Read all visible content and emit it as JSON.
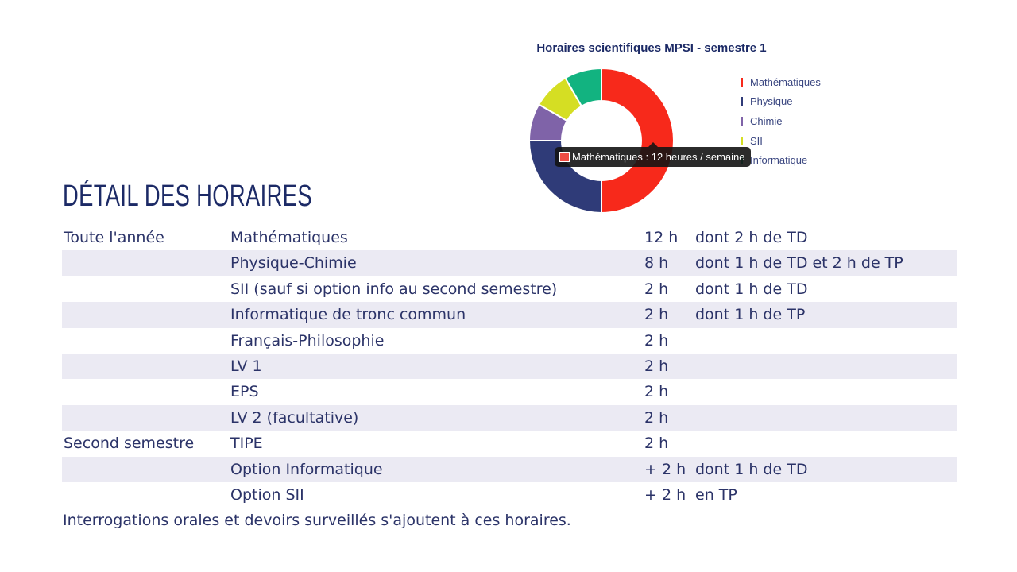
{
  "chart_data": {
    "type": "pie",
    "variant": "donut",
    "title": "Horaires scientifiques MPSI - semestre 1",
    "categories": [
      "Mathématiques",
      "Physique",
      "Chimie",
      "SII",
      "Informatique"
    ],
    "values": [
      12,
      6,
      2,
      2,
      2
    ],
    "colors": [
      "#f7291b",
      "#2f3b78",
      "#7f63a8",
      "#d5de23",
      "#12b380"
    ],
    "legend": "right",
    "tooltip": {
      "label": "Mathématiques : 12 heures / semaine",
      "color": "#ef4c44"
    }
  },
  "heading": "DÉTAIL DES HORAIRES",
  "table": [
    [
      "Toute l'année",
      "Mathématiques",
      "12 h",
      "dont 2 h de TD"
    ],
    [
      "",
      "Physique-Chimie",
      "8 h",
      "dont 1 h de TD et 2 h de TP"
    ],
    [
      "",
      "SII (sauf si option info au second semestre)",
      "2 h",
      "dont 1 h de TD"
    ],
    [
      "",
      "Informatique de tronc commun",
      "2 h",
      "dont 1 h de TP"
    ],
    [
      "",
      "Français-Philosophie",
      "2 h",
      ""
    ],
    [
      "",
      "LV 1",
      "2 h",
      ""
    ],
    [
      "",
      "EPS",
      "2 h",
      ""
    ],
    [
      "",
      "LV 2 (facultative)",
      "2 h",
      ""
    ],
    [
      "Second semestre",
      "TIPE",
      "2 h",
      ""
    ],
    [
      "",
      "Option Informatique",
      "+ 2 h",
      "dont 1 h de TD"
    ],
    [
      "",
      "Option SII",
      "+ 2 h",
      "en TP"
    ]
  ],
  "footnote": "Interrogations orales et devoirs surveillés s'ajoutent à ces horaires."
}
